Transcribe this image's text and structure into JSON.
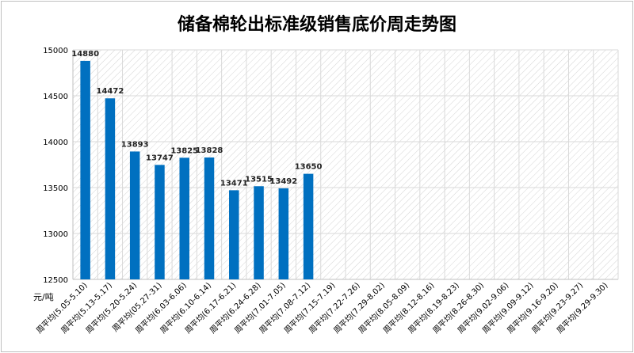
{
  "chart_data": {
    "type": "bar",
    "title": "储备棉轮出标准级销售底价周走势图",
    "ylabel": "元/吨",
    "xlabel": "",
    "ylim": [
      12500,
      15000
    ],
    "yticks": [
      12500,
      13000,
      13500,
      14000,
      14500,
      15000
    ],
    "categories": [
      "周平均(5.05-5.10)",
      "周平均(5.13-5.17)",
      "周平均(5.20-5.24)",
      "周平均(05.27-31)",
      "周平均(6.03-6.06)",
      "周平均(6.10-6.14)",
      "周平均(6.17-6.21)",
      "周平均(6.24-6.28)",
      "周平均(7.01-7.05)",
      "周平均(7.08-7.12)",
      "周平均(7.15-7.19)",
      "周平均(7.22-7.26)",
      "周平均(7.29-8.02)",
      "周平均(8.05-8.09)",
      "周平均(8.12-8.16)",
      "周平均(8.19-8.23)",
      "周平均(8.26-8.30)",
      "周平均(9.02-9.06)",
      "周平均(9.09-9.12)",
      "周平均(9.16-9.20)",
      "周平均(9.23-9.27)",
      "周平均(9.29-9.30)"
    ],
    "values": [
      14880,
      14472,
      13893,
      13747,
      13825,
      13828,
      13471,
      13515,
      13492,
      13650,
      null,
      null,
      null,
      null,
      null,
      null,
      null,
      null,
      null,
      null,
      null,
      null
    ],
    "data_labels": true,
    "bar_color": "#0070c0",
    "plot_background": "diagonal hatch",
    "grid": true,
    "legend": "none"
  }
}
